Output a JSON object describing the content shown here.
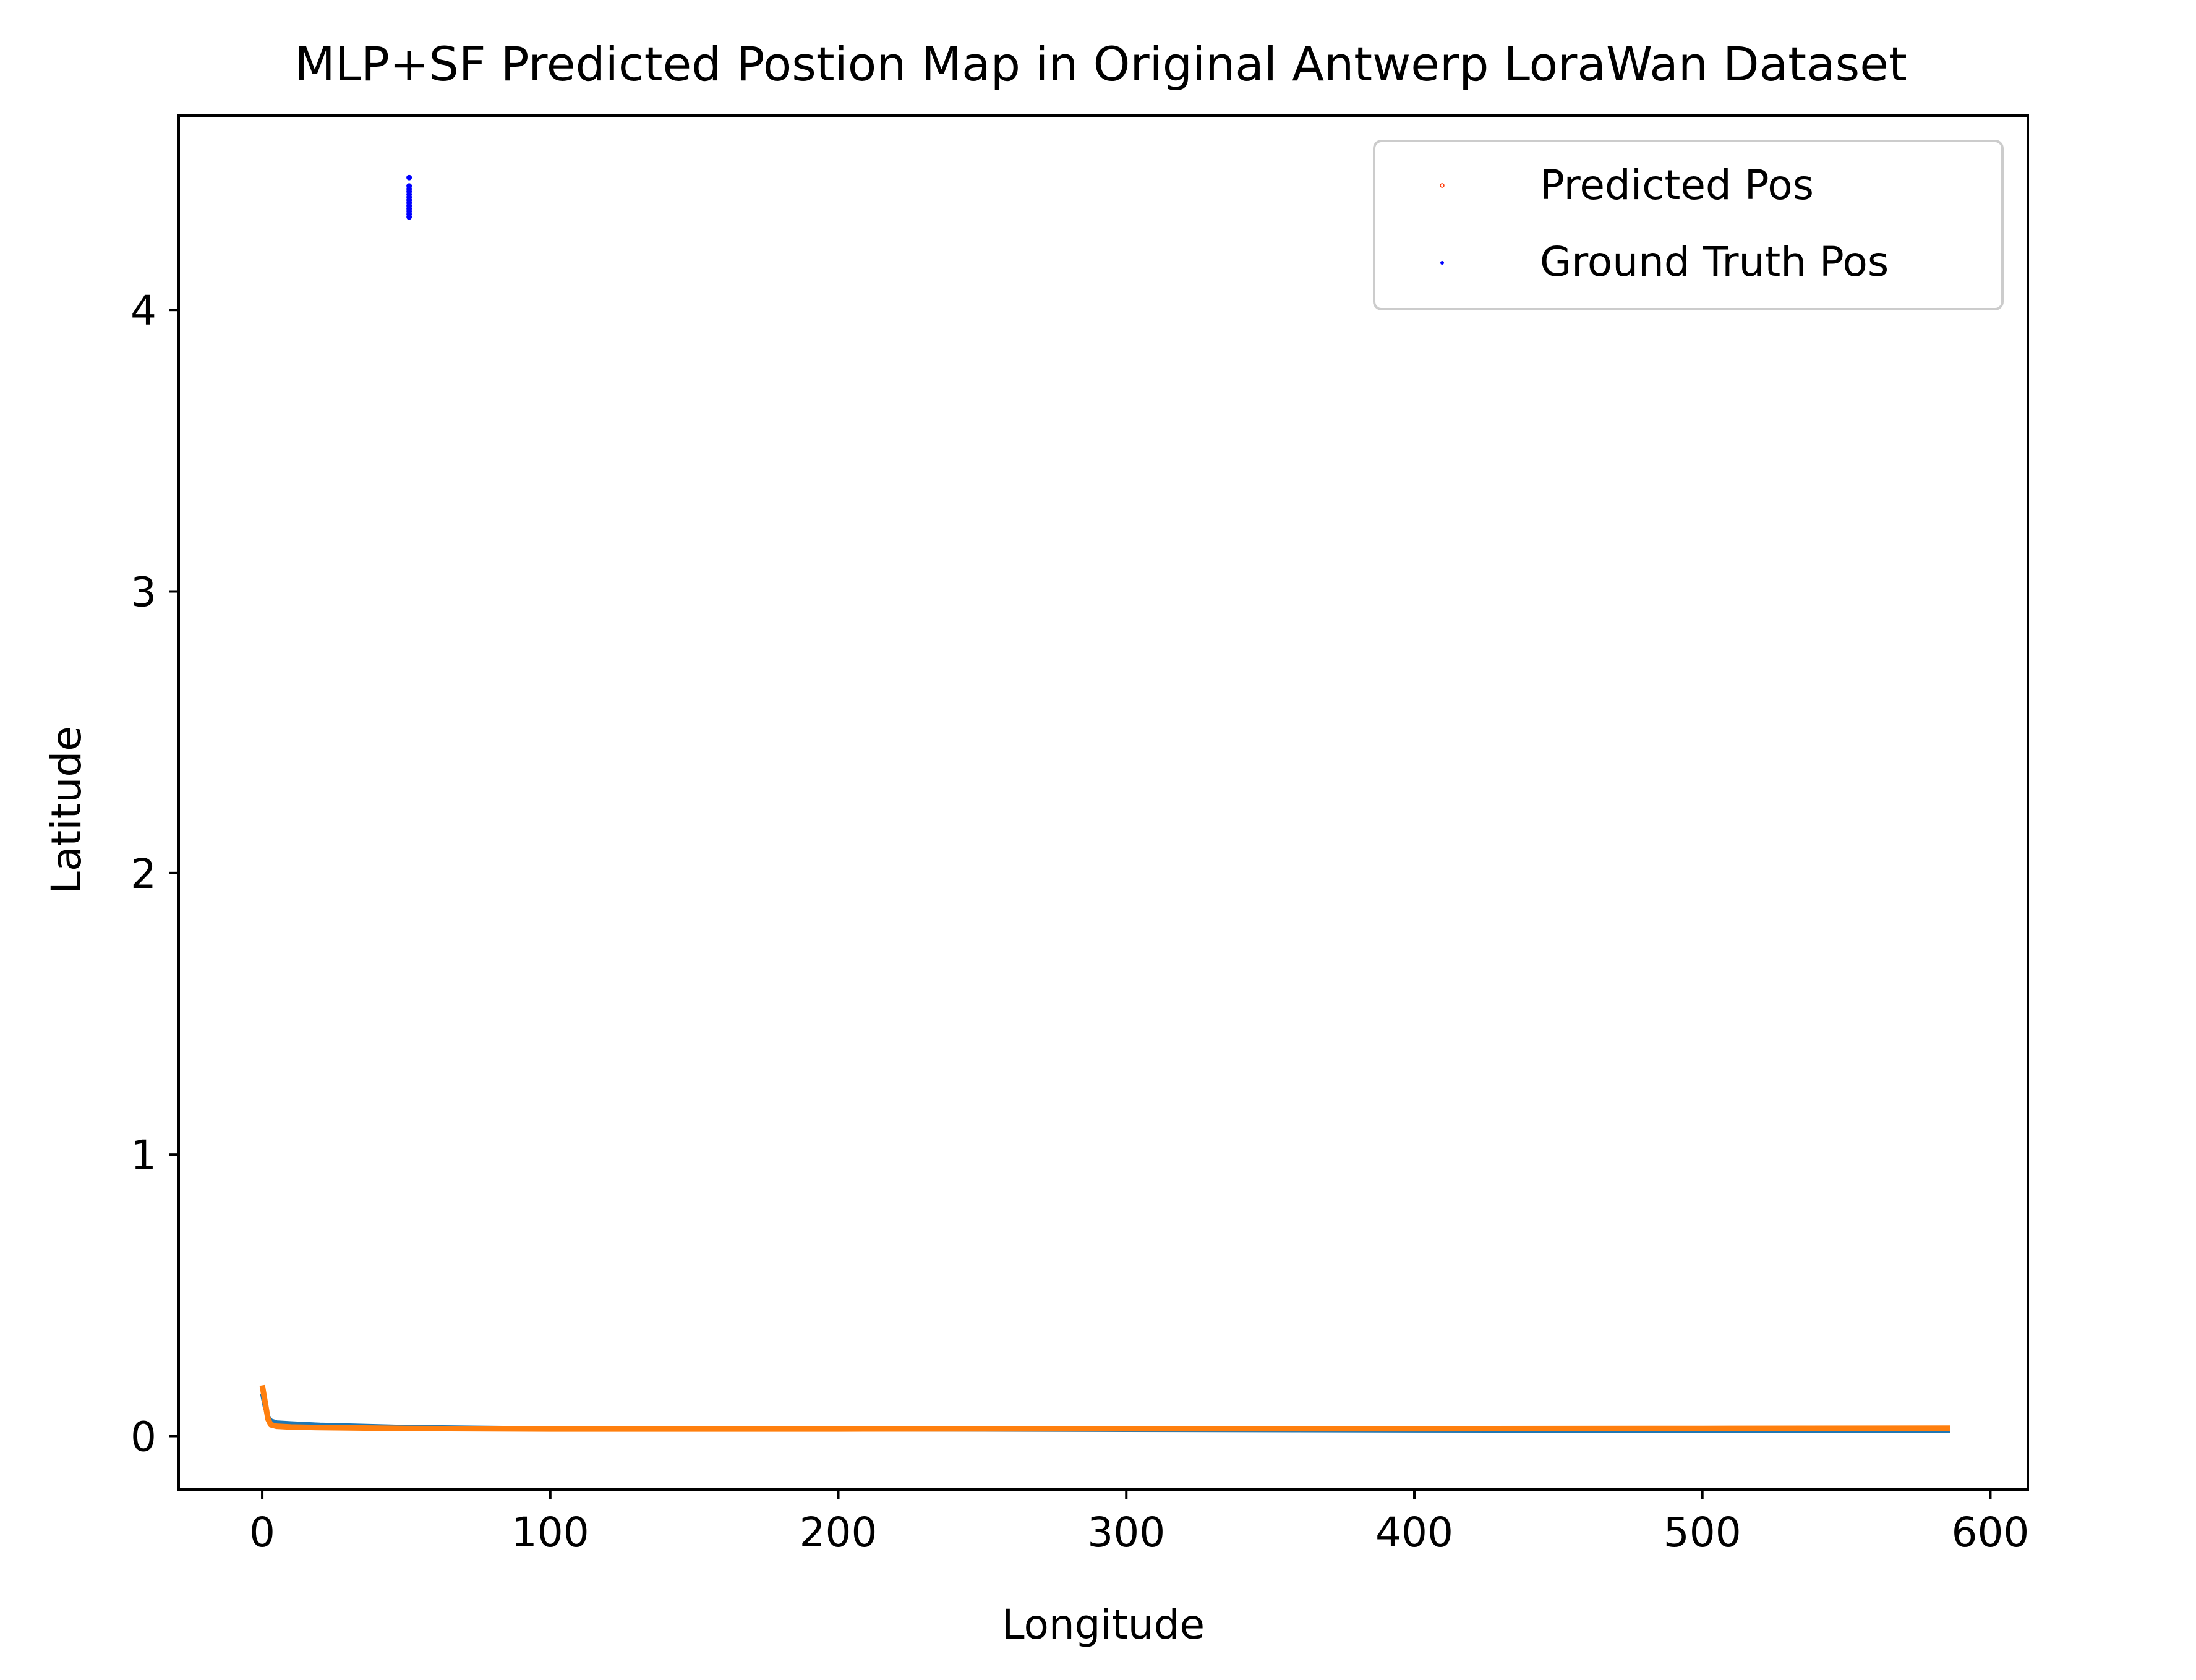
{
  "chart_data": {
    "type": "line",
    "title": "MLP+SF Predicted Postion Map in Original Antwerp LoraWan Dataset",
    "xlabel": "Longitude",
    "ylabel": "Latitude",
    "xlim": [
      -29,
      613
    ],
    "ylim": [
      -0.19,
      4.69
    ],
    "xticks": [
      0,
      100,
      200,
      300,
      400,
      500,
      600
    ],
    "yticks": [
      0,
      1,
      2,
      3,
      4
    ],
    "grid": false,
    "legend_position": "top-right",
    "legend": [
      {
        "label": "Predicted Pos",
        "color": "#ff3300",
        "marker": "small hollow circle"
      },
      {
        "label": "Ground Truth Pos",
        "color": "#0000ff",
        "marker": "dot"
      }
    ],
    "series": [
      {
        "color": "#1f77b4",
        "style": "line",
        "x": [
          0,
          1,
          2,
          3,
          5,
          10,
          20,
          50,
          100,
          200,
          300,
          400,
          500,
          586
        ],
        "y": [
          0.15,
          0.1,
          0.07,
          0.055,
          0.048,
          0.045,
          0.04,
          0.032,
          0.027,
          0.024,
          0.022,
          0.02,
          0.019,
          0.018
        ]
      },
      {
        "color": "#ff7f0e",
        "style": "line",
        "x": [
          0,
          1,
          2,
          3,
          5,
          10,
          20,
          50,
          100,
          200,
          300,
          400,
          500,
          586
        ],
        "y": [
          0.18,
          0.12,
          0.06,
          0.04,
          0.035,
          0.032,
          0.03,
          0.027,
          0.025,
          0.025,
          0.026,
          0.026,
          0.027,
          0.028
        ]
      },
      {
        "name": "Ground Truth Pos",
        "color": "#0000ff",
        "style": "points",
        "x": [
          51,
          51,
          51,
          51,
          51,
          51,
          51,
          51,
          51,
          51,
          51,
          51,
          51
        ],
        "y": [
          4.33,
          4.34,
          4.35,
          4.36,
          4.37,
          4.38,
          4.39,
          4.4,
          4.41,
          4.42,
          4.43,
          4.44,
          4.47
        ]
      }
    ]
  }
}
